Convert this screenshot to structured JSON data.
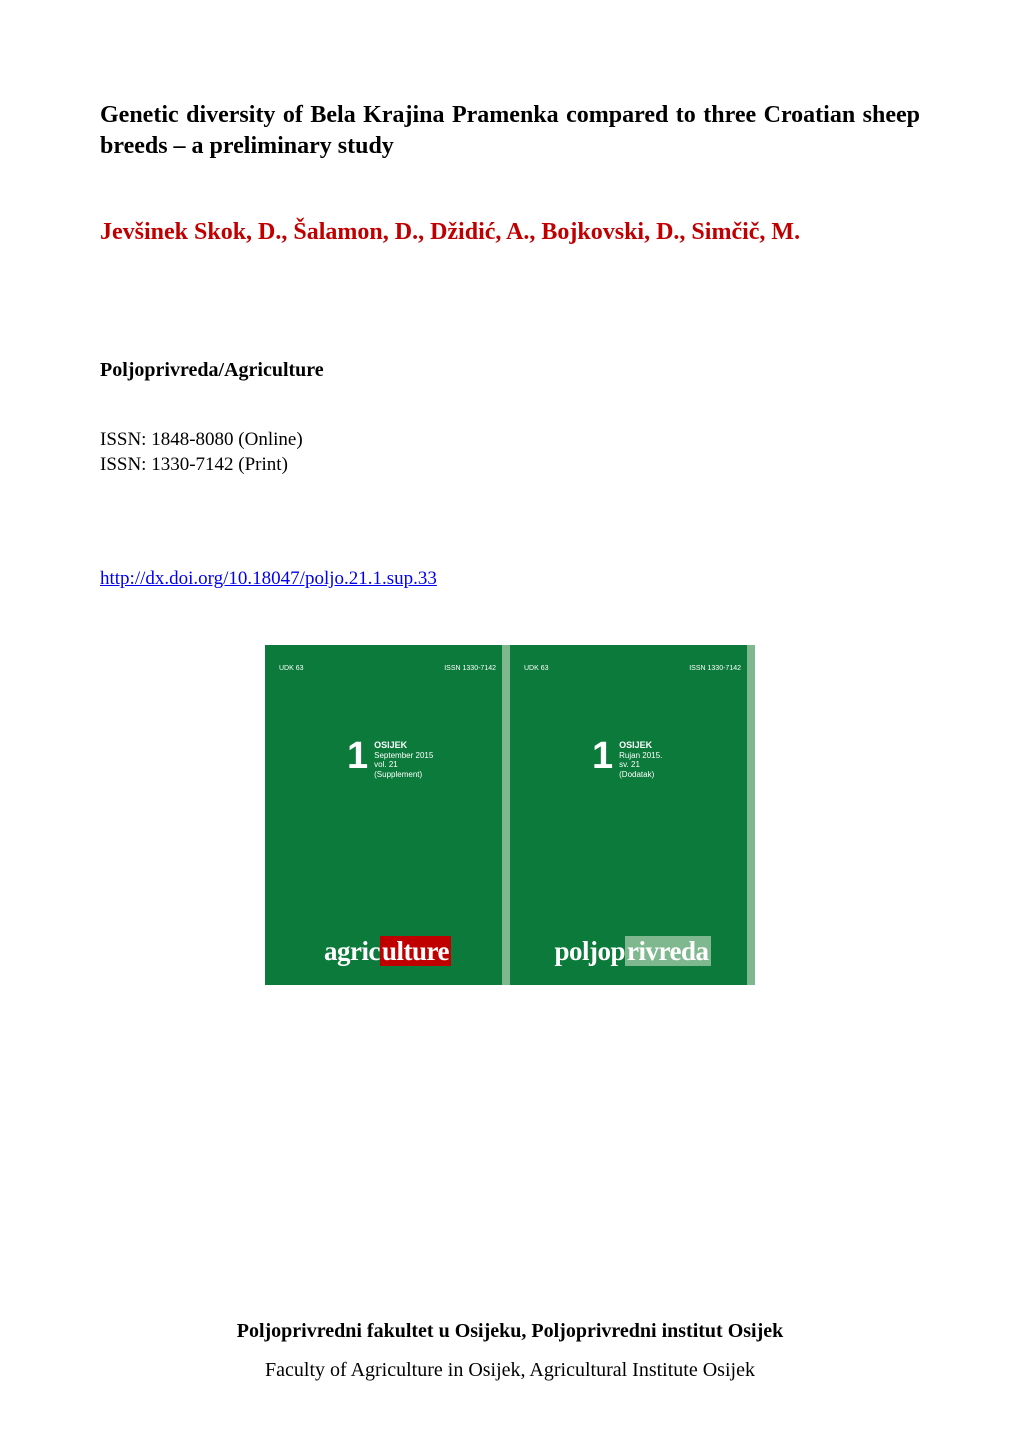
{
  "title": "Genetic diversity of Bela Krajina Pramenka compared to three Croatian sheep breeds – a preliminary study",
  "authors": "Jevšinek Skok, D., Šalamon, D., Džidić, A., Bojkovski, D., Simčič, M.",
  "journal": "Poljoprivreda/Agriculture",
  "issn_online": "ISSN: 1848-8080 (Online)",
  "issn_print": "ISSN: 1330-7142 (Print)",
  "doi_url": "http://dx.doi.org/10.18047/poljo.21.1.sup.33",
  "cover_left": {
    "udk": "UDK 63",
    "issn": "ISSN 1330-7142",
    "issue_num": "1",
    "location": "OSIJEK",
    "date": "September 2015",
    "vol": "vol. 21",
    "suppl": "(Supplement)",
    "word_white1": "agric",
    "word_accent": "ulture",
    "word_white2": ""
  },
  "cover_right": {
    "udk": "UDK 63",
    "issn": "ISSN 1330-7142",
    "issue_num": "1",
    "location": "OSIJEK",
    "date": "Rujan 2015.",
    "vol": "sv. 21",
    "suppl": "(Dodatak)",
    "word_white1": "poljop",
    "word_accent": "rivreda",
    "word_white2": ""
  },
  "footer_bold": "Poljoprivredni fakultet u Osijeku, Poljoprivredni institut Osijek",
  "footer_normal": "Faculty of Agriculture in Osijek, Agricultural Institute Osijek",
  "colors": {
    "author_color": "#c00000",
    "link_color": "#0000ee",
    "cover_bg": "#0b7a3a",
    "cover_spine": "#7fb88e",
    "accent_red": "#c00000"
  }
}
